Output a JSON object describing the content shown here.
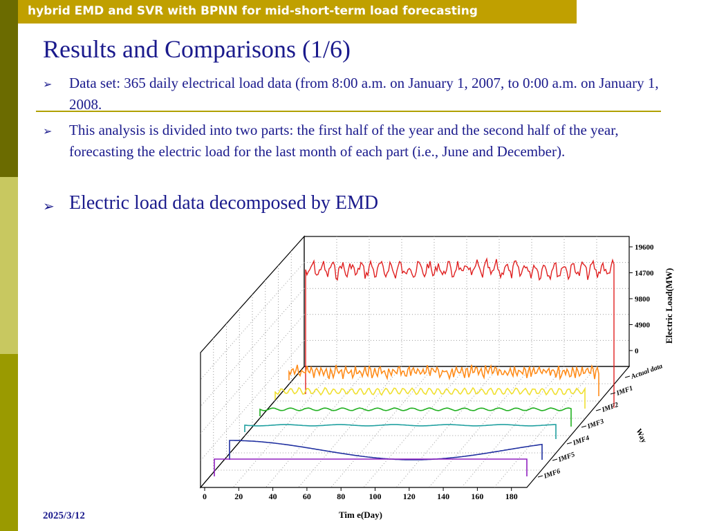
{
  "header": {
    "title": "hybrid EMD and SVR with BPNN for mid-short-term load forecasting"
  },
  "slide": {
    "title": "Results and Comparisons (1/6)",
    "bullets": [
      {
        "text": "Data set: 365 daily electrical load data (from 8:00 a.m. on January 1, 2007, to 0:00 a.m. on January 1, 2008."
      },
      {
        "text": "This analysis is divided into two parts: the first half of the year and the second half of the year, forecasting the electric load for the last month of each part (i.e., June and December)."
      },
      {
        "text": "Electric load data decomposed by EMD"
      }
    ],
    "date": "2025/3/12"
  },
  "colors": {
    "sidebar_dark": "#6b6b00",
    "sidebar_light": "#c8c860",
    "sidebar_mid": "#9a9a00",
    "header_bar": "#c0a000",
    "text": "#1a1a8c"
  },
  "chart_data": {
    "type": "line",
    "xlabel": "Tim e(Day)",
    "ylabel": "Electric Load(MW)",
    "zlabel": "Way",
    "x_ticks": [
      "0",
      "20",
      "40",
      "60",
      "80",
      "100",
      "120",
      "140",
      "160",
      "180"
    ],
    "y_ticks": [
      "19600",
      "14700",
      "9800",
      "4900",
      "0"
    ],
    "series": [
      {
        "name": "Actual data",
        "color": "#e02020"
      },
      {
        "name": "IMF1",
        "color": "#ff8c1a"
      },
      {
        "name": "IMF2",
        "color": "#f0e030"
      },
      {
        "name": "IMF3",
        "color": "#20b020"
      },
      {
        "name": "IMF4",
        "color": "#20a0a0"
      },
      {
        "name": "IMF5",
        "color": "#2030a0"
      },
      {
        "name": "IMF6",
        "color": "#9020c0"
      }
    ]
  }
}
